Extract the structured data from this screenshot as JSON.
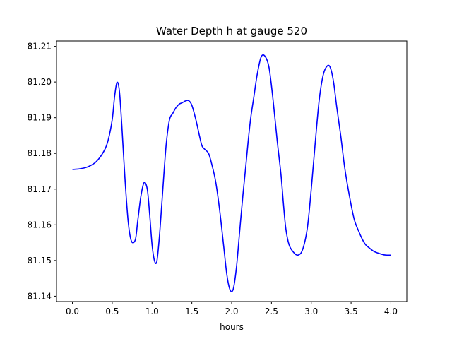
{
  "chart_data": {
    "type": "line",
    "title": "Water Depth h at gauge 520",
    "xlabel": "hours",
    "ylabel": "",
    "xlim": [
      -0.2,
      4.2
    ],
    "ylim": [
      81.1385,
      81.2115
    ],
    "xticks": [
      0.0,
      0.5,
      1.0,
      1.5,
      2.0,
      2.5,
      3.0,
      3.5,
      4.0
    ],
    "xtick_labels": [
      "0.0",
      "0.5",
      "1.0",
      "1.5",
      "2.0",
      "2.5",
      "3.0",
      "3.5",
      "4.0"
    ],
    "yticks": [
      81.14,
      81.15,
      81.16,
      81.17,
      81.18,
      81.19,
      81.2,
      81.21
    ],
    "ytick_labels": [
      "81.14",
      "81.15",
      "81.16",
      "81.17",
      "81.18",
      "81.19",
      "81.20",
      "81.21"
    ],
    "grid": false,
    "series": [
      {
        "color": "#0000ff",
        "x": [
          0.0,
          0.1,
          0.2,
          0.3,
          0.4,
          0.45,
          0.5,
          0.53,
          0.56,
          0.59,
          0.62,
          0.66,
          0.7,
          0.74,
          0.79,
          0.82,
          0.86,
          0.9,
          0.94,
          0.97,
          1.0,
          1.03,
          1.06,
          1.09,
          1.12,
          1.15,
          1.18,
          1.22,
          1.26,
          1.3,
          1.34,
          1.38,
          1.42,
          1.46,
          1.5,
          1.55,
          1.6,
          1.63,
          1.67,
          1.71,
          1.75,
          1.8,
          1.85,
          1.9,
          1.94,
          1.98,
          2.02,
          2.06,
          2.1,
          2.14,
          2.18,
          2.21,
          2.24,
          2.28,
          2.32,
          2.37,
          2.42,
          2.47,
          2.52,
          2.57,
          2.62,
          2.65,
          2.68,
          2.72,
          2.77,
          2.83,
          2.89,
          2.95,
          3.0,
          3.05,
          3.1,
          3.15,
          3.2,
          3.24,
          3.28,
          3.32,
          3.37,
          3.42,
          3.48,
          3.54,
          3.6,
          3.64,
          3.68,
          3.73,
          3.79,
          3.85,
          3.91,
          3.96,
          4.0
        ],
        "y": [
          81.1755,
          81.1757,
          81.1763,
          81.1777,
          81.1808,
          81.1838,
          81.1895,
          81.196,
          81.1999,
          81.1975,
          81.188,
          81.173,
          81.161,
          81.1555,
          81.1558,
          81.161,
          81.168,
          81.1718,
          81.17,
          81.163,
          81.1545,
          81.15,
          81.1497,
          81.156,
          81.165,
          81.1745,
          81.183,
          81.1895,
          81.1912,
          81.1928,
          81.1938,
          81.1942,
          81.1947,
          81.1948,
          81.1935,
          81.1895,
          81.1845,
          81.182,
          81.181,
          81.18,
          81.177,
          81.172,
          81.164,
          81.154,
          81.146,
          81.1418,
          81.142,
          81.148,
          81.158,
          81.168,
          81.177,
          81.184,
          81.19,
          81.196,
          81.202,
          81.207,
          81.2072,
          81.204,
          81.195,
          81.184,
          81.174,
          81.166,
          81.159,
          81.1545,
          81.1525,
          81.1515,
          81.153,
          81.159,
          81.17,
          81.183,
          81.195,
          81.202,
          81.2045,
          81.204,
          81.2,
          81.193,
          81.185,
          81.176,
          81.168,
          81.1615,
          81.158,
          81.156,
          81.1545,
          81.1535,
          81.1525,
          81.152,
          81.1516,
          81.1515,
          81.1515
        ]
      }
    ]
  }
}
